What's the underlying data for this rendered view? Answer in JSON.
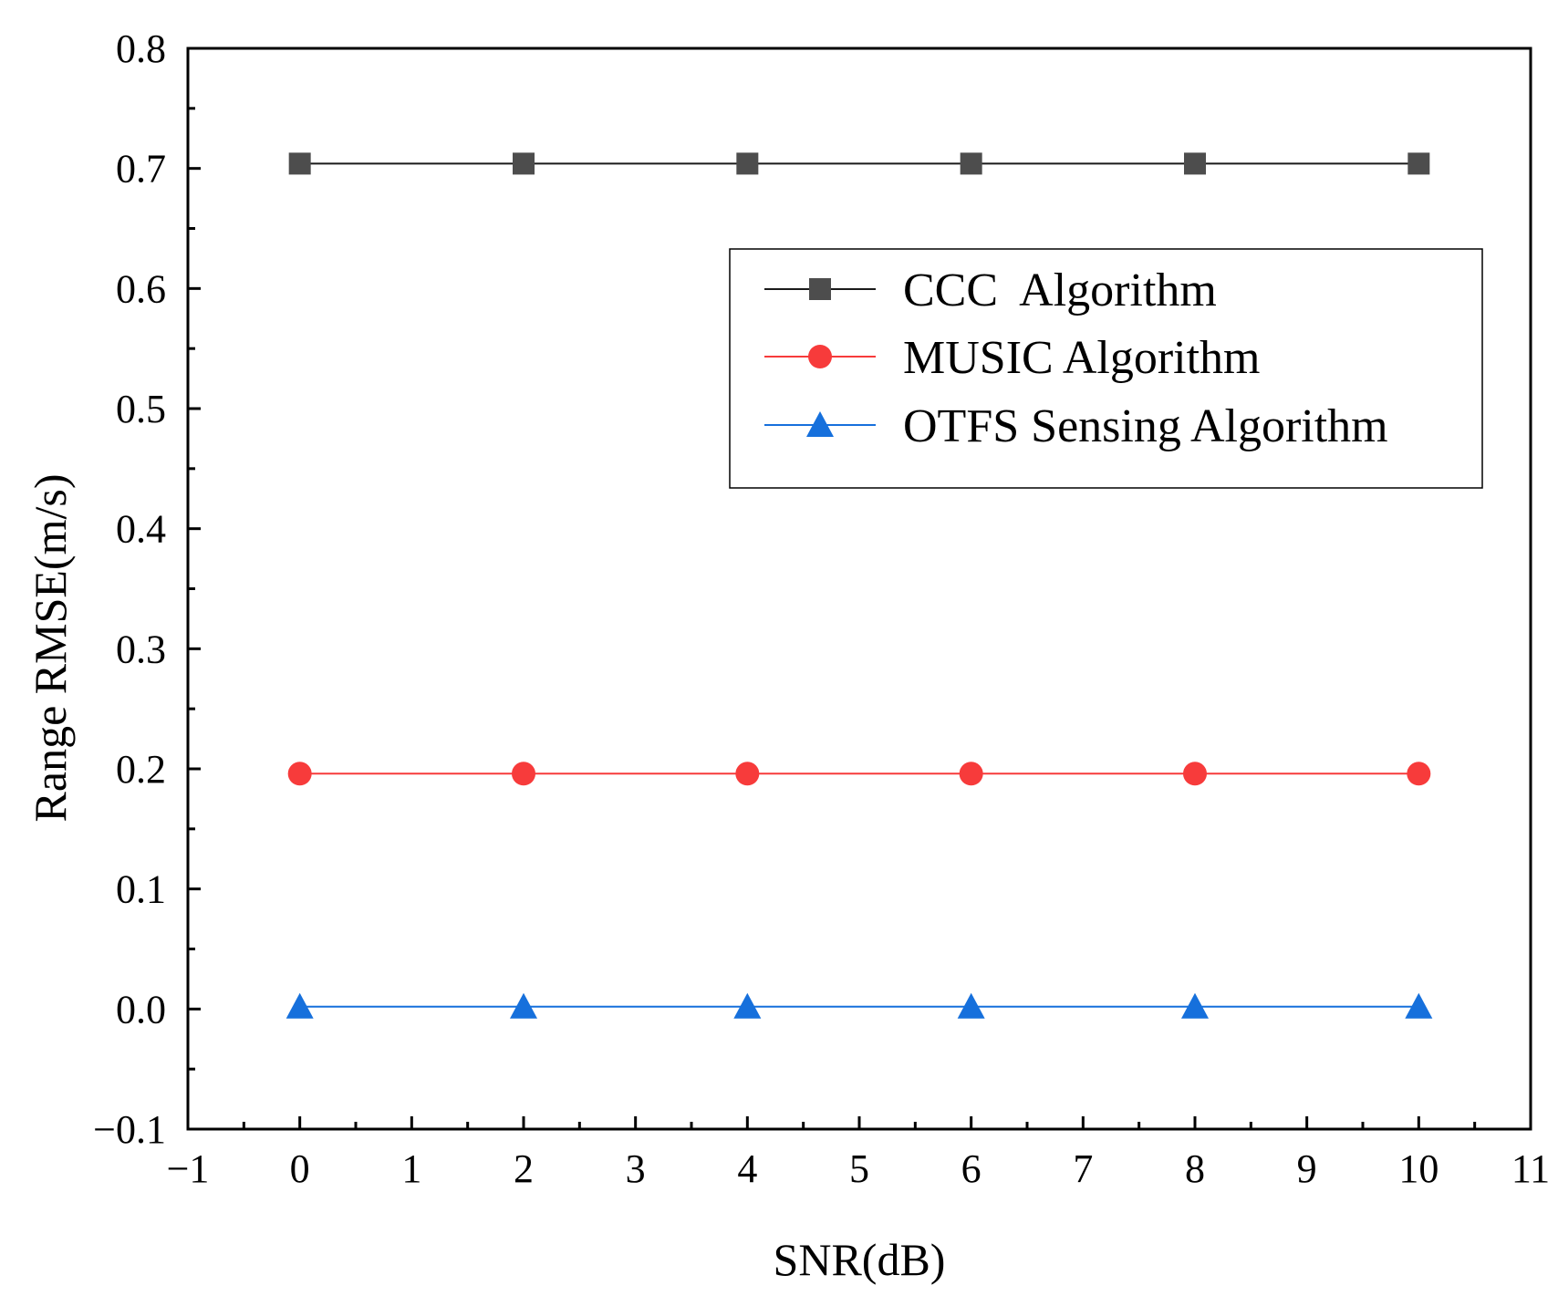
{
  "chart_data": {
    "type": "line",
    "xlabel": "SNR(dB)",
    "ylabel": "Range RMSE(m/s)",
    "xlim": [
      -1,
      11
    ],
    "ylim": [
      -0.1,
      0.8
    ],
    "x_ticks": [
      -1,
      0,
      1,
      2,
      3,
      4,
      5,
      6,
      7,
      8,
      9,
      10,
      11
    ],
    "x_tick_labels": [
      "−1",
      "0",
      "1",
      "2",
      "3",
      "4",
      "5",
      "6",
      "7",
      "8",
      "9",
      "10",
      "11"
    ],
    "y_ticks": [
      -0.1,
      0.0,
      0.1,
      0.2,
      0.3,
      0.4,
      0.5,
      0.6,
      0.7,
      0.8
    ],
    "y_tick_labels": [
      "−0.1",
      "0.0",
      "0.1",
      "0.2",
      "0.3",
      "0.4",
      "0.5",
      "0.6",
      "0.7",
      "0.8"
    ],
    "grid": false,
    "legend_position": "upper-right",
    "x": [
      0,
      2,
      4,
      6,
      8,
      10
    ],
    "series": [
      {
        "name": "CCC  Algorithm",
        "values": [
          0.704,
          0.704,
          0.704,
          0.704,
          0.704,
          0.704
        ],
        "color": "#4d4d4d",
        "line_color": "#1a1a1a",
        "marker": "square"
      },
      {
        "name": "MUSIC Algorithm",
        "values": [
          0.196,
          0.196,
          0.196,
          0.196,
          0.196,
          0.196
        ],
        "color": "#f73b3b",
        "line_color": "#f73b3b",
        "marker": "circle"
      },
      {
        "name": "OTFS Sensing Algorithm",
        "values": [
          0.002,
          0.002,
          0.002,
          0.002,
          0.002,
          0.002
        ],
        "color": "#1670dc",
        "line_color": "#1670dc",
        "marker": "triangle"
      }
    ]
  }
}
